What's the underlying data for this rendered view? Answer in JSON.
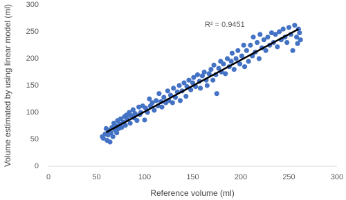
{
  "chart_data": {
    "type": "scatter",
    "xlabel": "Reference volume (ml)",
    "ylabel": "Volume estimated by using linear model (ml)",
    "annotation": "R² = 0.9451",
    "xlim": [
      0,
      300
    ],
    "xticks": [
      0,
      50,
      100,
      150,
      200,
      250,
      300
    ],
    "ylim": [
      0,
      300
    ],
    "yticks": [
      0,
      50,
      100,
      150,
      200,
      250,
      300
    ],
    "series": [
      {
        "color": "#4472c4",
        "x": [
          56,
          57,
          59,
          60,
          61,
          62,
          63,
          64,
          65,
          66,
          67,
          68,
          69,
          70,
          71,
          72,
          73,
          74,
          75,
          76,
          78,
          79,
          80,
          81,
          82,
          84,
          85,
          86,
          88,
          89,
          90,
          92,
          94,
          95,
          96,
          98,
          100,
          101,
          103,
          105,
          106,
          108,
          110,
          112,
          114,
          115,
          117,
          118,
          120,
          122,
          124,
          125,
          127,
          129,
          130,
          132,
          134,
          136,
          137,
          139,
          141,
          143,
          144,
          146,
          148,
          150,
          151,
          153,
          155,
          157,
          158,
          160,
          162,
          164,
          165,
          167,
          169,
          171,
          172,
          174,
          175,
          177,
          179,
          180,
          182,
          184,
          186,
          188,
          190,
          191,
          193,
          195,
          197,
          199,
          201,
          203,
          204,
          206,
          208,
          210,
          212,
          213,
          215,
          217,
          219,
          220,
          222,
          224,
          226,
          228,
          230,
          232,
          234,
          236,
          238,
          240,
          242,
          244,
          246,
          248,
          250,
          252,
          254,
          256,
          258,
          259,
          260,
          261,
          262
        ],
        "values": [
          55,
          52,
          60,
          70,
          48,
          58,
          66,
          45,
          62,
          72,
          55,
          80,
          68,
          75,
          62,
          85,
          70,
          78,
          88,
          72,
          82,
          92,
          76,
          95,
          88,
          100,
          80,
          94,
          105,
          90,
          98,
          85,
          110,
          96,
          100,
          112,
          86,
          108,
          100,
          125,
          112,
          118,
          104,
          122,
          112,
          135,
          120,
          110,
          128,
          118,
          140,
          122,
          132,
          118,
          145,
          128,
          138,
          150,
          122,
          140,
          155,
          130,
          148,
          160,
          142,
          155,
          165,
          148,
          170,
          158,
          145,
          168,
          175,
          160,
          150,
          172,
          180,
          160,
          188,
          170,
          135,
          182,
          195,
          175,
          190,
          172,
          200,
          185,
          195,
          210,
          180,
          200,
          215,
          190,
          205,
          225,
          185,
          215,
          195,
          225,
          205,
          240,
          212,
          230,
          200,
          245,
          220,
          235,
          215,
          240,
          225,
          248,
          230,
          245,
          222,
          250,
          235,
          255,
          240,
          230,
          258,
          245,
          215,
          262,
          240,
          228,
          255,
          248,
          235
        ]
      }
    ],
    "trendline": {
      "color": "#000000",
      "x": [
        60,
        260
      ],
      "values": [
        63,
        255
      ]
    }
  }
}
